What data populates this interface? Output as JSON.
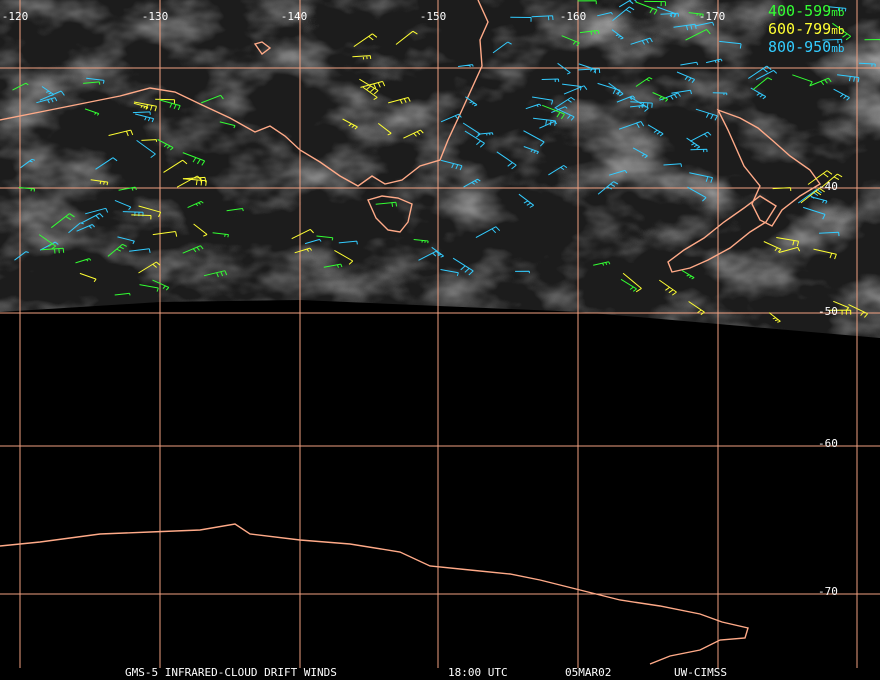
{
  "map": {
    "longitude_labels": [
      "-120",
      "-130",
      "-140",
      "-150",
      "-160",
      "-170"
    ],
    "latitude_labels": [
      "-40",
      "-50",
      "-60",
      "-70"
    ],
    "legend": [
      {
        "label": "400-599",
        "unit": "mb",
        "color": "#33ff33"
      },
      {
        "label": "600-799",
        "unit": "mb",
        "color": "#ffff33"
      },
      {
        "label": "800-950",
        "unit": "mb",
        "color": "#33ccff"
      }
    ],
    "footer": [
      "GMS-5 INFRARED-CLOUD DRIFT WINDS",
      "18:00 UTC",
      "05MAR02",
      "UW-CIMSS"
    ]
  }
}
